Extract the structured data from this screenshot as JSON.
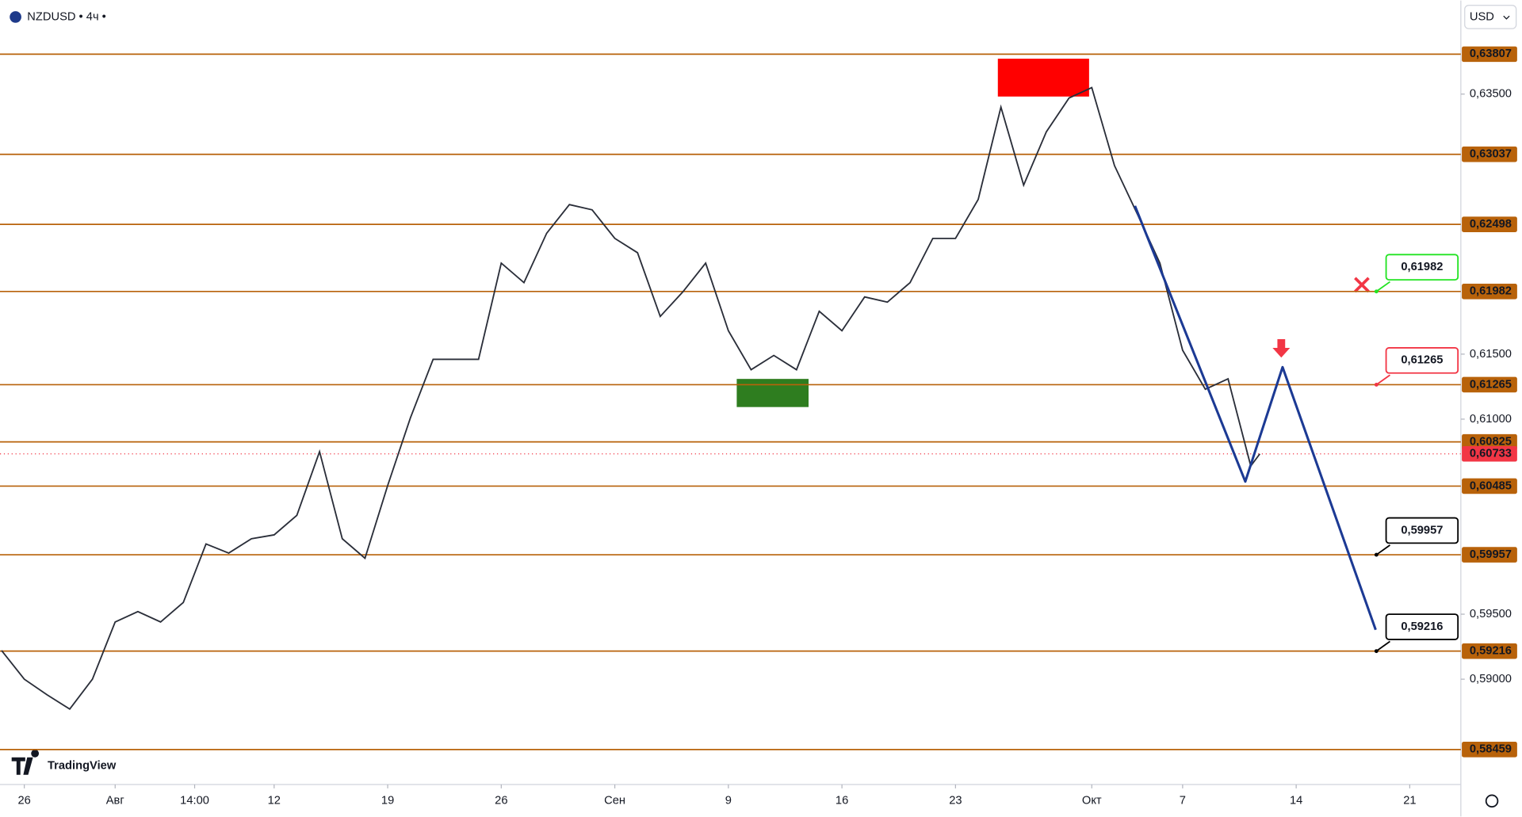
{
  "header": {
    "symbol": "NZDUSD • 4ч •",
    "currency": "USD",
    "logo": "TradingView"
  },
  "chart_data": {
    "type": "line",
    "color": "#2a2e39",
    "x": [
      -1,
      0,
      1,
      2,
      3,
      4,
      5,
      6,
      7,
      8,
      9,
      10,
      11,
      12,
      13,
      14,
      15,
      16,
      17,
      18,
      19,
      20,
      21,
      22,
      23,
      24,
      25,
      26,
      27,
      28,
      29,
      30,
      31,
      32,
      33,
      34,
      35,
      36,
      37,
      38,
      39,
      40,
      41,
      42,
      43,
      44,
      45,
      46,
      47,
      48,
      49,
      50,
      51,
      52,
      53,
      54,
      54.4
    ],
    "values": [
      0.5922,
      0.59,
      0.5888,
      0.5877,
      0.59,
      0.5944,
      0.5952,
      0.5944,
      0.5959,
      0.6004,
      0.5997,
      0.6008,
      0.6011,
      0.6026,
      0.6075,
      0.6008,
      0.5993,
      0.6049,
      0.6101,
      0.6146,
      0.6146,
      0.6146,
      0.622,
      0.6205,
      0.6243,
      0.6265,
      0.6261,
      0.6239,
      0.6228,
      0.6179,
      0.6198,
      0.622,
      0.6168,
      0.6138,
      0.6149,
      0.6138,
      0.6183,
      0.6168,
      0.6194,
      0.619,
      0.6205,
      0.6239,
      0.6239,
      0.6269,
      0.634,
      0.628,
      0.6321,
      0.6347,
      0.6355,
      0.6295,
      0.6258,
      0.622,
      0.6153,
      0.6123,
      0.6131,
      0.6064,
      0.60733
    ],
    "xlim": [
      -1.07,
      63.25
    ],
    "ylim": [
      0.5819,
      0.6422
    ],
    "xticks": [
      {
        "value": 0,
        "label": "26"
      },
      {
        "value": 4,
        "label": "Авг"
      },
      {
        "value": 7.5,
        "label": "14:00"
      },
      {
        "value": 11,
        "label": "12"
      },
      {
        "value": 16,
        "label": "19"
      },
      {
        "value": 21,
        "label": "26"
      },
      {
        "value": 26,
        "label": "Сен"
      },
      {
        "value": 31,
        "label": "9"
      },
      {
        "value": 36,
        "label": "16"
      },
      {
        "value": 41,
        "label": "23"
      },
      {
        "value": 47,
        "label": "Окт"
      },
      {
        "value": 51,
        "label": "7"
      },
      {
        "value": 56,
        "label": "14"
      },
      {
        "value": 61,
        "label": "21"
      }
    ],
    "yticks": [
      {
        "value": 0.635,
        "label": "0,63500"
      },
      {
        "value": 0.615,
        "label": "0,61500"
      },
      {
        "value": 0.61,
        "label": "0,61000"
      },
      {
        "value": 0.595,
        "label": "0,59500"
      },
      {
        "value": 0.59,
        "label": "0,59000"
      }
    ],
    "levels": [
      {
        "value": 0.63807,
        "label": "0,63807"
      },
      {
        "value": 0.63037,
        "label": "0,63037"
      },
      {
        "value": 0.62498,
        "label": "0,62498"
      },
      {
        "value": 0.61982,
        "label": "0,61982"
      },
      {
        "value": 0.61265,
        "label": "0,61265"
      },
      {
        "value": 0.60825,
        "label": "0,60825"
      },
      {
        "value": 0.60485,
        "label": "0,60485"
      },
      {
        "value": 0.59957,
        "label": "0,59957"
      },
      {
        "value": 0.59216,
        "label": "0,59216"
      },
      {
        "value": 0.58459,
        "label": "0,58459"
      }
    ],
    "level_color": "#b8620a",
    "last_price": {
      "value": 0.60733,
      "label": "0,60733",
      "color": "#f23645"
    },
    "forecast": {
      "x": [
        48.9,
        53.76,
        55.4,
        59.5
      ],
      "values": [
        0.6264,
        0.6052,
        0.614,
        0.5938
      ],
      "color": "#1c3a94"
    },
    "targets": [
      {
        "value": 0.61982,
        "label": "0,61982",
        "color": "#22e322"
      },
      {
        "value": 0.61265,
        "label": "0,61265",
        "color": "#f23645"
      },
      {
        "value": 0.59957,
        "label": "0,59957",
        "color": "#000000"
      },
      {
        "value": 0.59216,
        "label": "0,59216",
        "color": "#000000"
      }
    ]
  }
}
